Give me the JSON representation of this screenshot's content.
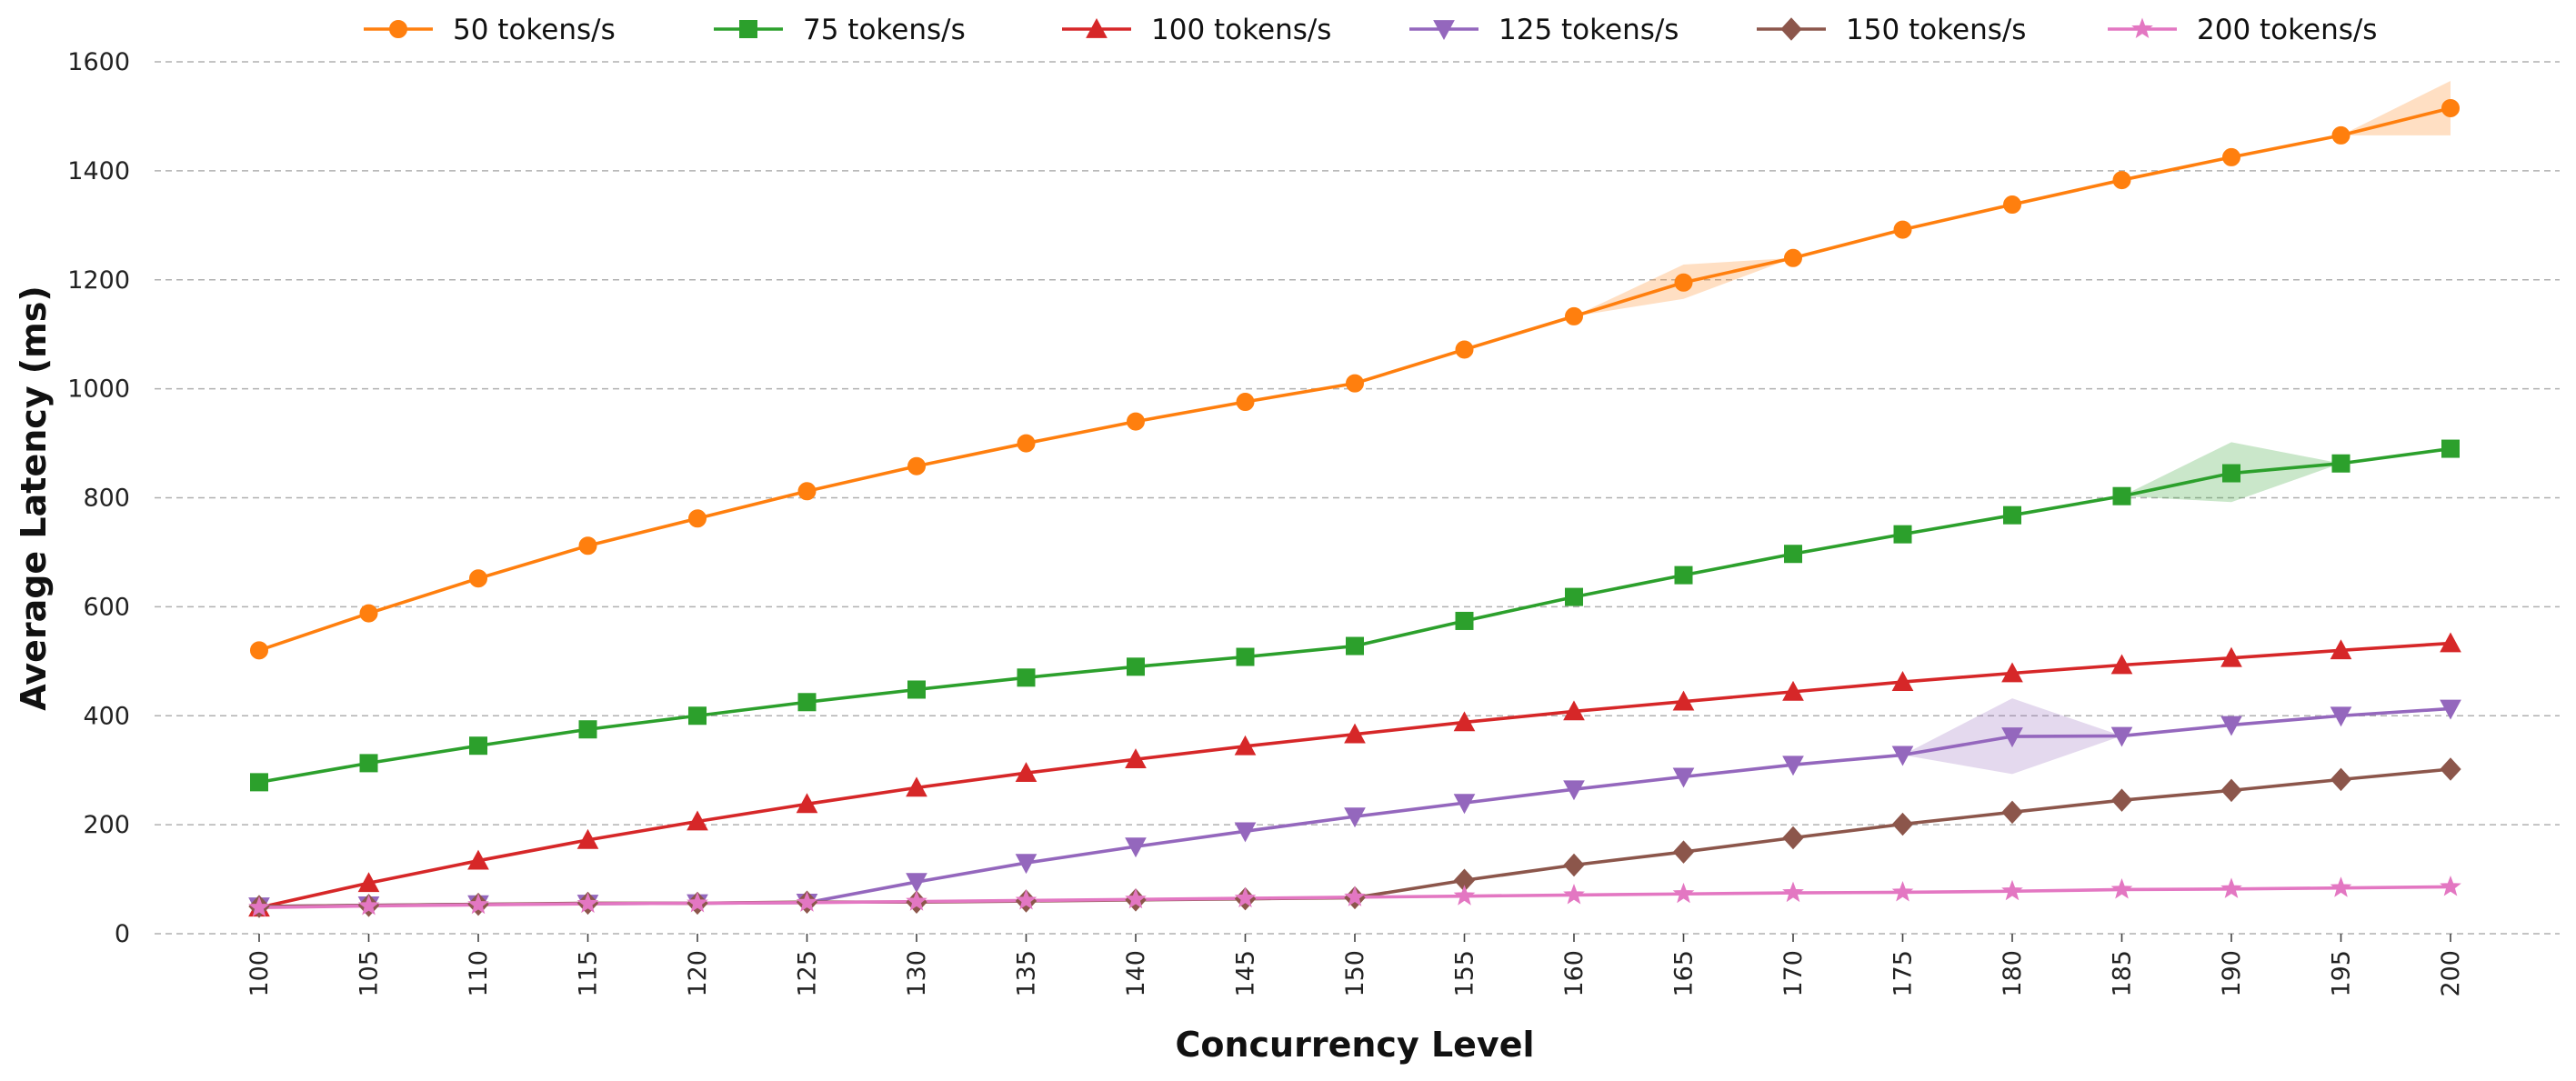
{
  "chart_data": {
    "type": "line",
    "title": "",
    "xlabel": "Concurrency Level",
    "ylabel": "Average Latency (ms)",
    "x": [
      100,
      105,
      110,
      115,
      120,
      125,
      130,
      135,
      140,
      145,
      150,
      155,
      160,
      165,
      170,
      175,
      180,
      185,
      190,
      195,
      200
    ],
    "ylim": [
      0,
      1600
    ],
    "yticks": [
      0,
      200,
      400,
      600,
      800,
      1000,
      1200,
      1400,
      1600
    ],
    "grid": "horizontal dashed",
    "legend": "top",
    "series": [
      {
        "name": "50 tokens/s",
        "color": "#ff7f0e",
        "marker": "circle",
        "values": [
          520,
          588,
          652,
          712,
          762,
          812,
          858,
          900,
          940,
          976,
          1010,
          1072,
          1133,
          1195,
          1240,
          1292,
          1338,
          1383,
          1425,
          1465,
          1515
        ],
        "band": {
          "165": [
            1165,
            1228
          ],
          "200": [
            1465,
            1565
          ]
        }
      },
      {
        "name": "75 tokens/s",
        "color": "#2ca02c",
        "marker": "square",
        "values": [
          278,
          313,
          345,
          375,
          400,
          425,
          448,
          470,
          490,
          508,
          528,
          574,
          618,
          658,
          697,
          733,
          768,
          803,
          845,
          863,
          890
        ],
        "band": {
          "190": [
            792,
            902
          ]
        }
      },
      {
        "name": "100 tokens/s",
        "color": "#d62728",
        "marker": "triangle-up",
        "values": [
          48,
          93,
          134,
          172,
          206,
          238,
          268,
          295,
          320,
          344,
          366,
          388,
          408,
          426,
          444,
          462,
          478,
          493,
          506,
          520,
          533
        ],
        "band": {}
      },
      {
        "name": "125 tokens/s",
        "color": "#9467bd",
        "marker": "triangle-down",
        "values": [
          50,
          52,
          54,
          55,
          56,
          57,
          95,
          130,
          160,
          188,
          215,
          240,
          265,
          288,
          310,
          328,
          362,
          363,
          383,
          400,
          413
        ],
        "band": {
          "180": [
            293,
            432
          ]
        }
      },
      {
        "name": "150 tokens/s",
        "color": "#8c564b",
        "marker": "diamond",
        "values": [
          50,
          52,
          54,
          56,
          56,
          58,
          58,
          60,
          62,
          64,
          66,
          98,
          126,
          150,
          176,
          201,
          223,
          245,
          263,
          283,
          302
        ],
        "band": {}
      },
      {
        "name": "200 tokens/s",
        "color": "#e377c2",
        "marker": "star",
        "values": [
          48,
          51,
          53,
          55,
          56,
          57,
          59,
          61,
          63,
          65,
          67,
          69,
          71,
          73,
          75,
          76,
          78,
          81,
          82,
          84,
          86
        ],
        "band": {}
      }
    ]
  }
}
